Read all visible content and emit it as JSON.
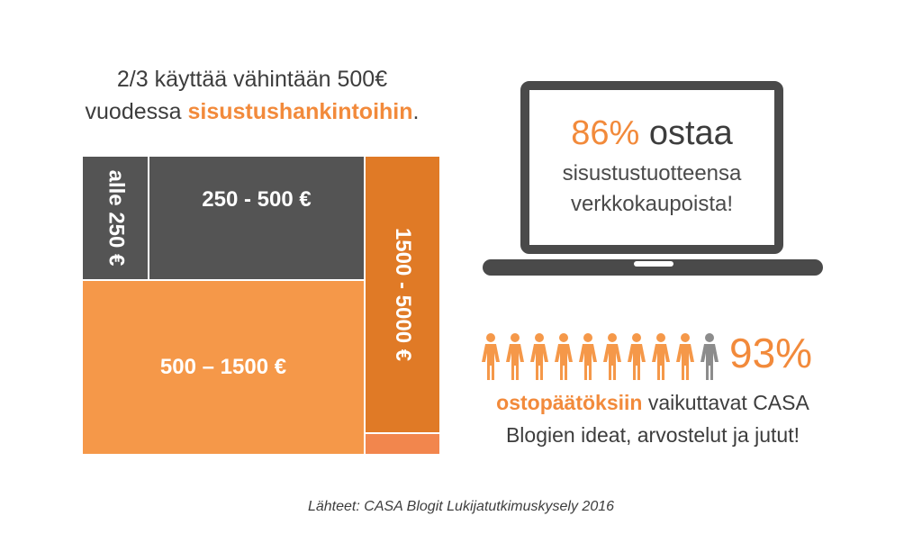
{
  "headline": {
    "line1": "2/3 käyttää vähintään 500€",
    "line2_prefix": "vuodessa ",
    "line2_accent": "sisustushankintoihin",
    "line2_suffix": "."
  },
  "chart_data": {
    "type": "treemap",
    "cells": [
      {
        "label": "alle 250 €",
        "color": "#545454"
      },
      {
        "label": "250 - 500 €",
        "color": "#545454"
      },
      {
        "label": "500 – 1500 €",
        "color": "#f59849"
      },
      {
        "label": "1500 - 5000 €",
        "color": "#e07a26"
      },
      {
        "label": "",
        "color": "#f2864d"
      }
    ]
  },
  "laptop": {
    "percent": "86%",
    "word": "ostaa",
    "line1": "sisustustuotteensa",
    "line2": "verkkokaupoista!"
  },
  "stat": {
    "percent": "93%",
    "highlighted_count": 9,
    "total_count": 10,
    "accent": "ostopäätöksiin",
    "line1_rest": " vaikuttavat CASA",
    "line2": "Blogien ideat, arvostelut ja jutut!",
    "icon": "person-icon",
    "color_highlight": "#f59849",
    "color_rest": "#8c8c8c"
  },
  "source": "Lähteet: CASA Blogit Lukijatutkimuskysely 2016"
}
